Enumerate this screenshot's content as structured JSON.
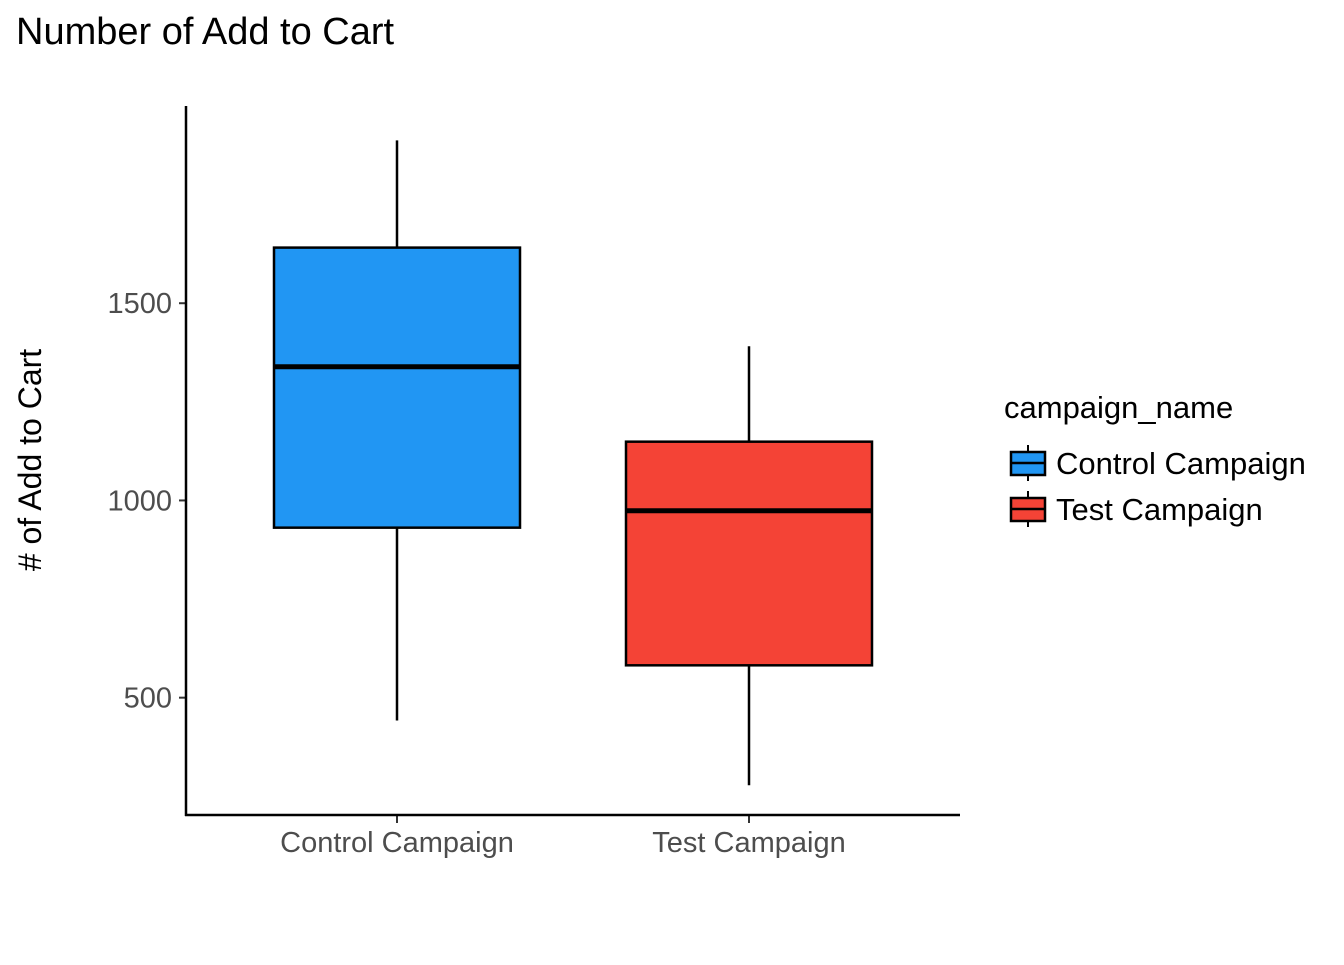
{
  "chart_data": {
    "type": "boxplot",
    "title": "Number of Add to Cart",
    "xlabel": "",
    "ylabel": "# of Add to Cart",
    "categories": [
      "Control Campaign",
      "Test Campaign"
    ],
    "series": [
      {
        "name": "Control Campaign",
        "color": "#2196F3",
        "min": 442,
        "q1": 931,
        "median": 1339,
        "q3": 1641,
        "max": 1913
      },
      {
        "name": "Test Campaign",
        "color": "#F44336",
        "min": 278,
        "q1": 582,
        "median": 974,
        "q3": 1149,
        "max": 1391
      }
    ],
    "ylim": [
      200,
      2000
    ],
    "yticks": [
      500,
      1000,
      1500
    ],
    "grid": false,
    "legend": {
      "title": "campaign_name",
      "placement": "right"
    }
  }
}
